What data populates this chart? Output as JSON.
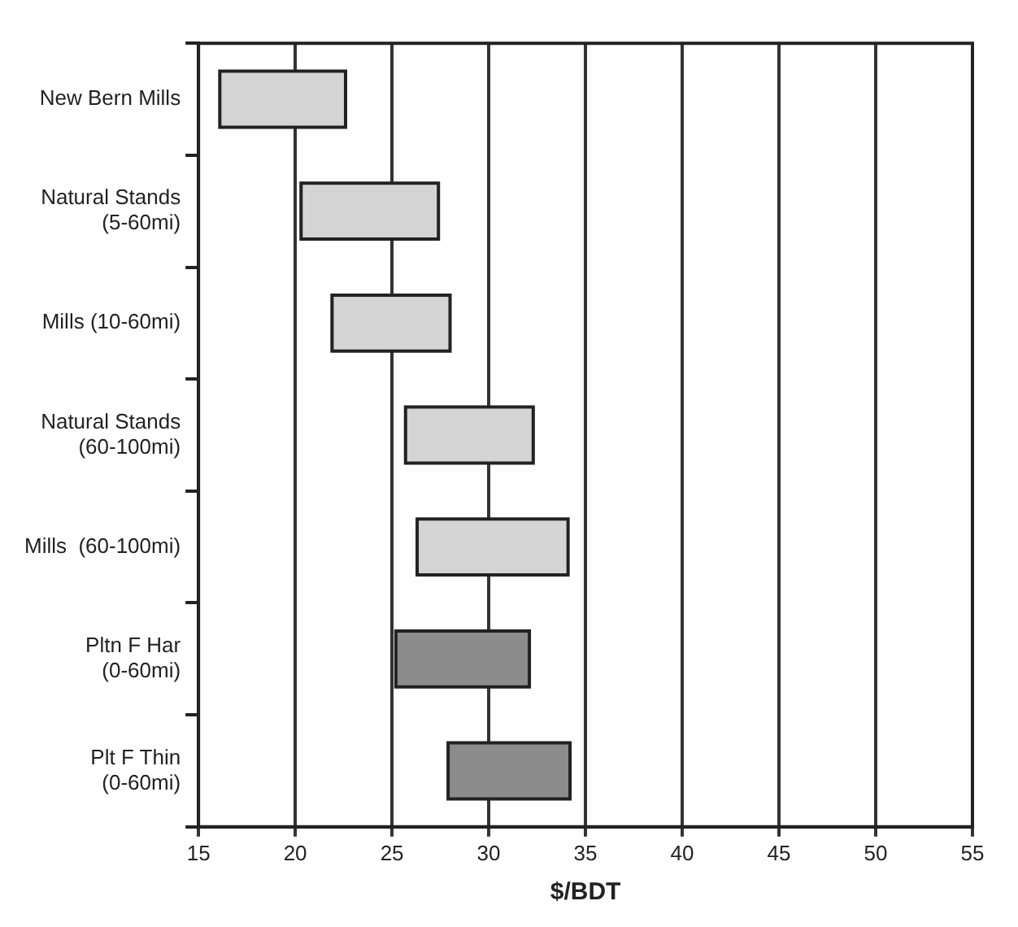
{
  "chart_data": {
    "type": "bar",
    "orientation": "horizontal",
    "xlabel": "$/BDT",
    "categories": [
      "New Bern Mills",
      "Natural Stands\n(5-60mi)",
      "Mills (10-60mi)",
      "Natural Stands\n(60-100mi)",
      "Mills  (60-100mi)",
      "Pltn F Har\n(0-60mi)",
      "Plt F Thin\n(0-60mi)"
    ],
    "base": [
      16.1,
      20.3,
      21.9,
      25.7,
      26.3,
      25.2,
      27.9
    ],
    "values": [
      6.5,
      7.1,
      6.1,
      6.6,
      7.8,
      6.9,
      6.3
    ],
    "colors": [
      "#d4d4d4",
      "#d4d4d4",
      "#d4d4d4",
      "#d4d4d4",
      "#d4d4d4",
      "#8c8c8c",
      "#8c8c8c"
    ],
    "xlim": [
      15,
      55
    ],
    "xticks": [
      15,
      20,
      25,
      30,
      35,
      40,
      45,
      50,
      55
    ],
    "grid": "x"
  }
}
